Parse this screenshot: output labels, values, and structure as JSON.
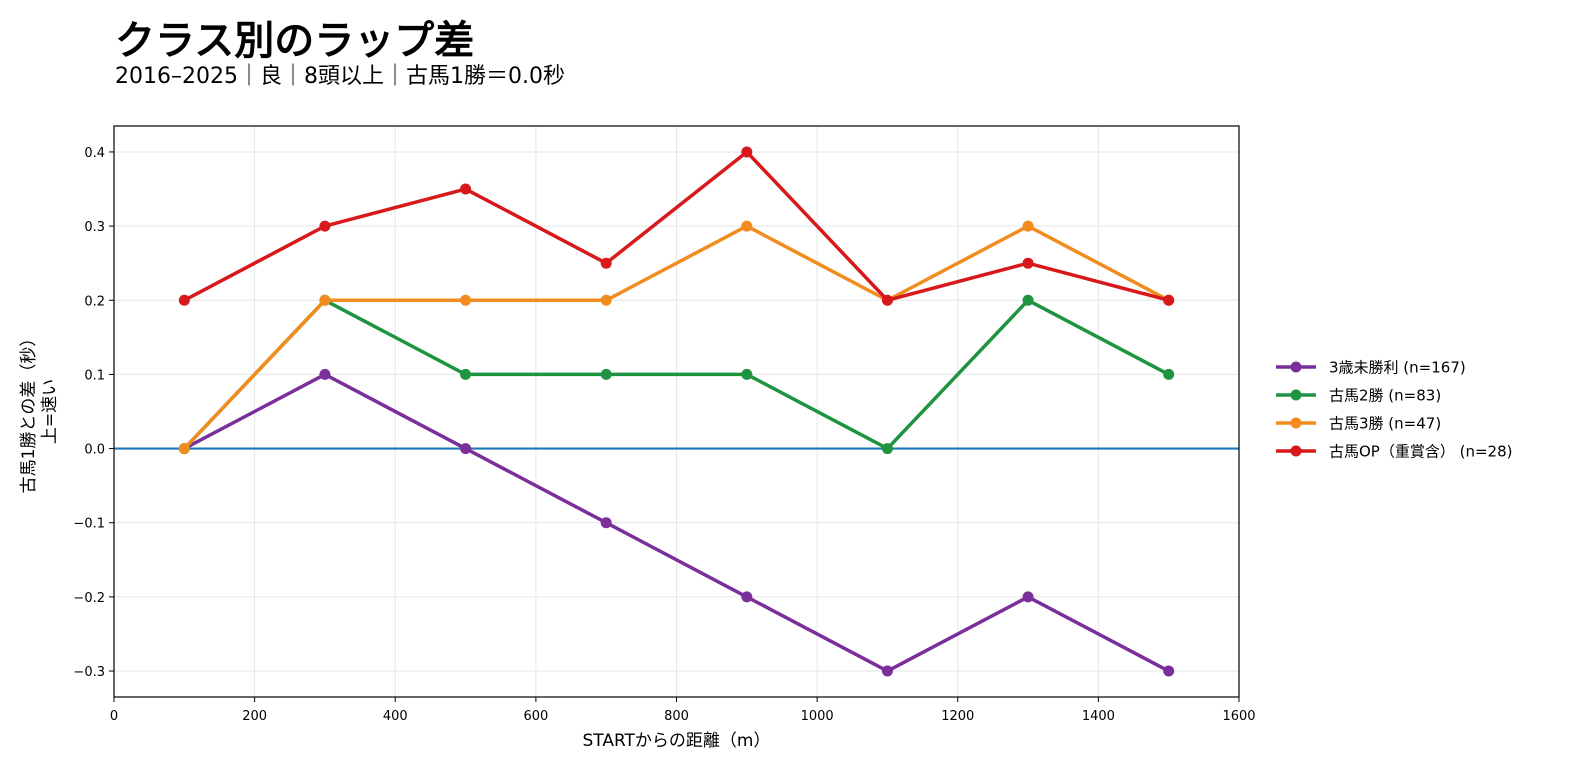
{
  "title": "クラス別のラップ差",
  "subtitle": "2016–2025｜良｜8頭以上｜古馬1勝＝0.0秒",
  "chart_data": {
    "type": "line",
    "xlabel": "STARTからの距離（m）",
    "ylabel_line1": "古馬1勝との差（秒）",
    "ylabel_line2": "上=速い",
    "xlim": [
      0,
      1600
    ],
    "ylim": [
      -0.335,
      0.435
    ],
    "xticks": [
      0,
      200,
      400,
      600,
      800,
      1000,
      1200,
      1400,
      1600
    ],
    "xtick_labels": [
      "0",
      "200",
      "400",
      "600",
      "800",
      "1000",
      "1200",
      "1400",
      "1600"
    ],
    "yticks": [
      -0.3,
      -0.2,
      -0.1,
      0.0,
      0.1,
      0.2,
      0.3,
      0.4
    ],
    "ytick_labels": [
      "−0.3",
      "−0.2",
      "−0.1",
      "0.0",
      "0.1",
      "0.2",
      "0.3",
      "0.4"
    ],
    "grid": true,
    "legend_position": "right",
    "reference_line": {
      "y": 0.0,
      "color": "#1f77b4"
    },
    "x": [
      100,
      300,
      500,
      700,
      900,
      1100,
      1300,
      1500
    ],
    "series": [
      {
        "name": "3歳未勝利 (n=167)",
        "color": "#7b2f9b",
        "values": [
          0.0,
          0.1,
          0.0,
          -0.1,
          -0.2,
          -0.3,
          -0.2,
          -0.3
        ]
      },
      {
        "name": "古馬2勝 (n=83)",
        "color": "#1e9440",
        "values": [
          0.0,
          0.2,
          0.1,
          0.1,
          0.1,
          0.0,
          0.2,
          0.1
        ]
      },
      {
        "name": "古馬3勝 (n=47)",
        "color": "#f28c1f",
        "values": [
          0.0,
          0.2,
          0.2,
          0.2,
          0.3,
          0.2,
          0.3,
          0.2
        ]
      },
      {
        "name": "古馬OP（重賞含） (n=28)",
        "color": "#d7191c",
        "values": [
          0.2,
          0.3,
          0.35,
          0.25,
          0.4,
          0.2,
          0.25,
          0.2
        ]
      }
    ]
  }
}
